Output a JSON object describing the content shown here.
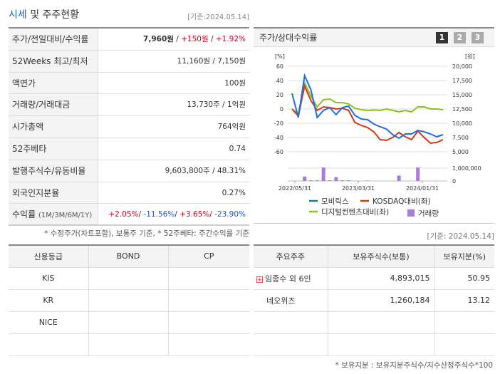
{
  "header": {
    "title_a": "시세",
    "title_b": " 및 주주현황",
    "date": "[기준:2024.05.14]"
  },
  "quote": [
    {
      "label": "주가/전일대비/수익률",
      "price": "7,960원",
      "change": "+150원",
      "rate": "+1.92%"
    },
    {
      "label": "52Weeks 최고/최저",
      "value": "11,160원 / 7,150원"
    },
    {
      "label": "액면가",
      "value": "100원"
    },
    {
      "label": "거래량/거래대금",
      "value": "13,730주 / 1억원"
    },
    {
      "label": "시가총액",
      "value": "764억원"
    },
    {
      "label": "52주베타",
      "value": "0.74"
    },
    {
      "label": "발행주식수/유동비율",
      "value": "9,603,800주 / 48.31%"
    },
    {
      "label": "외국인지분율",
      "value": "0.27%"
    },
    {
      "label": "수익률",
      "sub": "(1M/3M/6M/1Y)",
      "r1": "+2.05%",
      "r2": "-11.56%",
      "r3": "+3.65%",
      "r4": "-23.90%"
    }
  ],
  "note1": "* 수정주가(차트포함), 보통주 기준, * 52주베타: 주간수익률 기준",
  "chart_panel": {
    "title": "주가/상대수익률",
    "pages": [
      "1",
      "2",
      "3"
    ]
  },
  "chart_data": {
    "type": "line",
    "left_unit": "[%]",
    "right_unit": "[원]",
    "left_ticks": [
      "60",
      "40",
      "20",
      "0",
      "-20",
      "-40",
      "-60"
    ],
    "right_ticks": [
      "20,000",
      "17,500",
      "15,000",
      "12,500",
      "10,000",
      "7,500",
      "5,000"
    ],
    "vol_ticks": [
      "1,000,000",
      "0"
    ],
    "x_ticks": [
      "2022/05/31",
      "2023/03/31",
      "2024/01/31"
    ],
    "ylim": [
      -60,
      60
    ],
    "series": [
      {
        "name": "모비릭스",
        "color": "#1f6fe0",
        "values": [
          22,
          -12,
          47,
          27,
          -12,
          -2,
          2,
          -8,
          2,
          4,
          -9,
          -14,
          -15,
          -21,
          -25,
          -28,
          -36,
          -41,
          -35,
          -35,
          -30,
          -32,
          -35,
          -39,
          -36
        ]
      },
      {
        "name": "KOSDAQ대비(좌)",
        "color": "#d53a12",
        "values": [
          0,
          -10,
          32,
          12,
          -2,
          3,
          2,
          0,
          1,
          -2,
          -19,
          -23,
          -26,
          -32,
          -43,
          -44,
          -40,
          -33,
          -39,
          -43,
          -31,
          -40,
          -48,
          -47,
          -43
        ]
      },
      {
        "name": "디지털컨텐츠대비(좌)",
        "color": "#8cc21f",
        "values": [
          0,
          -7,
          37,
          18,
          3,
          13,
          14,
          9,
          9,
          7,
          1,
          -1,
          -2,
          -1.5,
          -2,
          0,
          -2,
          -4,
          -2,
          -4,
          3,
          3,
          0,
          0,
          -1
        ]
      }
    ],
    "volume": {
      "name": "거래량",
      "color": "#a77ddb",
      "values": [
        0,
        0,
        350000,
        50000,
        50000,
        1050000,
        50000,
        300000,
        50000,
        50000,
        0,
        0,
        30000,
        0,
        0,
        0,
        0,
        420000,
        0,
        0,
        1050000,
        0,
        0,
        0,
        0
      ],
      "max": 1000000
    }
  },
  "note2": "[기준: 2024.05.14]",
  "credit": {
    "headers": [
      "신용등급",
      "BOND",
      "CP"
    ],
    "rows": [
      [
        "KIS",
        "",
        ""
      ],
      [
        "KR",
        "",
        ""
      ],
      [
        "NICE",
        "",
        ""
      ],
      [
        "",
        "",
        ""
      ]
    ]
  },
  "holders": {
    "headers": [
      "주요주주",
      "보유주식수(보통)",
      "보유지분(%)"
    ],
    "rows": [
      [
        "임종수 외 6인",
        "4,893,015",
        "50.95"
      ],
      [
        "네오위즈",
        "1,260,184",
        "13.12"
      ],
      [
        "",
        "",
        ""
      ],
      [
        "",
        "",
        ""
      ]
    ]
  },
  "note3": "* 보유지분 : 보유지분주식수/지수산정주식수*100"
}
